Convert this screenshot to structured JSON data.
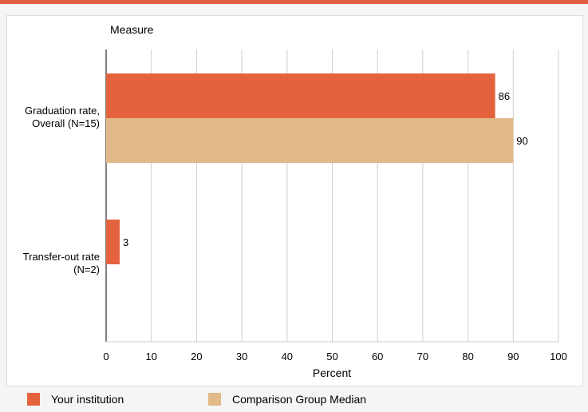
{
  "chart_data": {
    "type": "bar",
    "orientation": "horizontal",
    "title": "",
    "category_axis_title": "Measure",
    "xlabel": "Percent",
    "xlim": [
      0,
      100
    ],
    "x_ticks": [
      0,
      10,
      20,
      30,
      40,
      50,
      60,
      70,
      80,
      90,
      100
    ],
    "grid": true,
    "categories": [
      [
        "Graduation rate,",
        "Overall (N=15)"
      ],
      [
        "Transfer-out rate",
        "(N=2)"
      ]
    ],
    "series": [
      {
        "name": "Your institution",
        "color": "#e5623e",
        "values": [
          86,
          3
        ]
      },
      {
        "name": "Comparison Group Median",
        "color": "#e2ba89",
        "values": [
          90,
          null
        ]
      }
    ],
    "legend_position": "bottom"
  }
}
